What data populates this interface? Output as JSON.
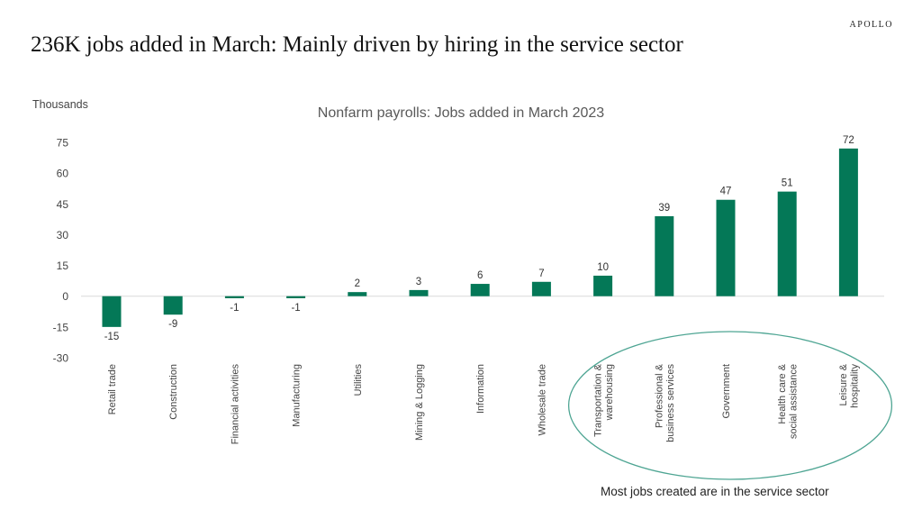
{
  "brand": "APOLLO",
  "headline": "236K jobs added in March: Mainly driven by hiring in the service sector",
  "footnote": "Most jobs created are in the service sector",
  "colors": {
    "bar": "#047857",
    "axis_text": "#444444",
    "ellipse": "#4ea593"
  },
  "chart_data": {
    "type": "bar",
    "title": "Nonfarm payrolls: Jobs added in March 2023",
    "ylabel": "Thousands",
    "xlabel": "",
    "ylim": [
      -30,
      75
    ],
    "yticks": [
      75,
      60,
      45,
      30,
      15,
      0,
      -15,
      -30
    ],
    "grid": false,
    "categories": [
      "Retail trade",
      "Construction",
      "Financial activities",
      "Manufacturing",
      "Utilities",
      "Mining & Logging",
      "Information",
      "Wholesale trade",
      "Transportation & warehousing",
      "Professional & business services",
      "Government",
      "Health care & social assistance",
      "Leisure & hospitality"
    ],
    "category_lines": [
      [
        "Retail trade"
      ],
      [
        "Construction"
      ],
      [
        "Financial activities"
      ],
      [
        "Manufacturing"
      ],
      [
        "Utilities"
      ],
      [
        "Mining & Logging"
      ],
      [
        "Information"
      ],
      [
        "Wholesale trade"
      ],
      [
        "Transportation &",
        "warehousing"
      ],
      [
        "Professional &",
        "business services"
      ],
      [
        "Government"
      ],
      [
        "Health care &",
        "social assistance"
      ],
      [
        "Leisure &",
        "hospitality"
      ]
    ],
    "values": [
      -15,
      -9,
      -1,
      -1,
      2,
      3,
      6,
      7,
      10,
      39,
      47,
      51,
      72
    ],
    "data_labels": [
      "-15",
      "-9",
      "-1",
      "-1",
      "2",
      "3",
      "6",
      "7",
      "10",
      "39",
      "47",
      "51",
      "72"
    ],
    "highlight": {
      "categories": [
        "Transportation & warehousing",
        "Professional & business services",
        "Government",
        "Health care & social assistance",
        "Leisure & hospitality"
      ],
      "shape": "ellipse"
    }
  }
}
